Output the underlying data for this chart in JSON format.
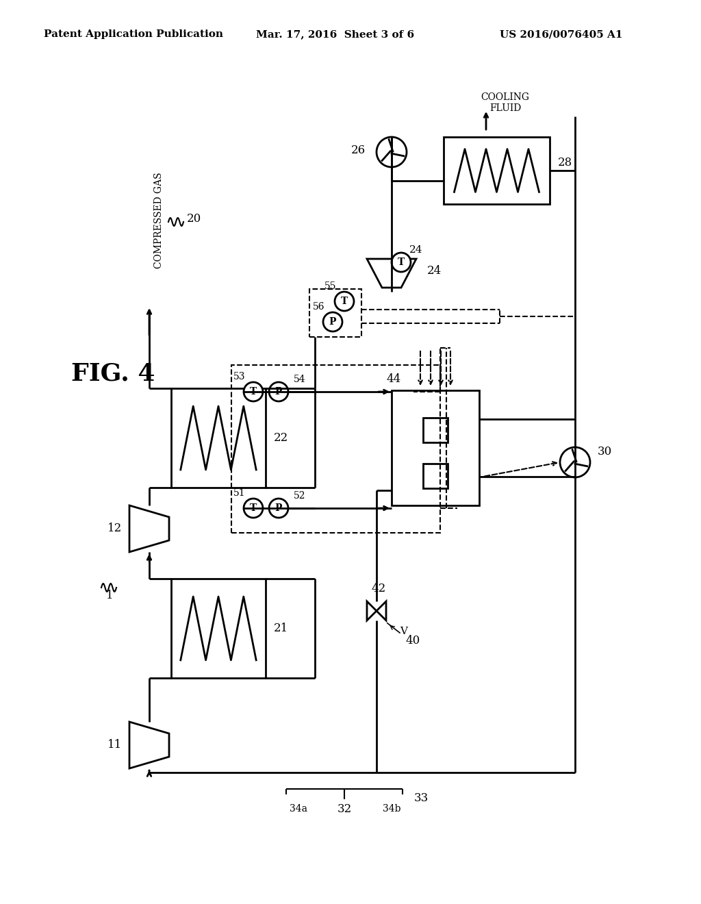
{
  "header_left": "Patent Application Publication",
  "header_mid": "Mar. 17, 2016  Sheet 3 of 6",
  "header_right": "US 2016/0076405 A1",
  "fig_label": "FIG. 4",
  "bg_color": "#ffffff",
  "line_color": "#000000"
}
